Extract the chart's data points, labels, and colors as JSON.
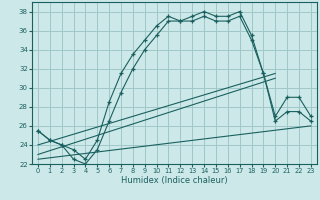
{
  "xlabel": "Humidex (Indice chaleur)",
  "xlim": [
    -0.5,
    23.5
  ],
  "ylim": [
    22,
    39
  ],
  "yticks": [
    22,
    24,
    26,
    28,
    30,
    32,
    34,
    36,
    38
  ],
  "xticks": [
    0,
    1,
    2,
    3,
    4,
    5,
    6,
    7,
    8,
    9,
    10,
    11,
    12,
    13,
    14,
    15,
    16,
    17,
    18,
    19,
    20,
    21,
    22,
    23
  ],
  "bg_color": "#cde8e8",
  "grid_color": "#a0c8c8",
  "line_color": "#1a6060",
  "line1_x": [
    0,
    1,
    2,
    3,
    4,
    5,
    6,
    7,
    8,
    9,
    10,
    11,
    12,
    13,
    14,
    15,
    16,
    17,
    18,
    19,
    20,
    21,
    22,
    23
  ],
  "line1_y": [
    25.5,
    24.5,
    24.0,
    23.5,
    22.5,
    24.5,
    28.5,
    31.5,
    33.5,
    35.0,
    36.5,
    37.5,
    37.0,
    37.5,
    38.0,
    37.5,
    37.5,
    38.0,
    35.5,
    31.5,
    27.0,
    29.0,
    29.0,
    27.0
  ],
  "line2_x": [
    0,
    1,
    2,
    3,
    4,
    5,
    6,
    7,
    8,
    9,
    10,
    11,
    12,
    13,
    14,
    15,
    16,
    17,
    18,
    19,
    20,
    21,
    22,
    23
  ],
  "line2_y": [
    25.5,
    24.5,
    24.0,
    22.5,
    22.0,
    23.5,
    26.5,
    29.5,
    32.0,
    34.0,
    35.5,
    37.0,
    37.0,
    37.0,
    37.5,
    37.0,
    37.0,
    37.5,
    35.0,
    31.5,
    26.5,
    27.5,
    27.5,
    26.5
  ],
  "line3_x": [
    0,
    20
  ],
  "line3_y": [
    24.0,
    31.5
  ],
  "line4_x": [
    0,
    23
  ],
  "line4_y": [
    22.5,
    26.0
  ],
  "line5_x": [
    0,
    20
  ],
  "line5_y": [
    23.0,
    31.0
  ]
}
